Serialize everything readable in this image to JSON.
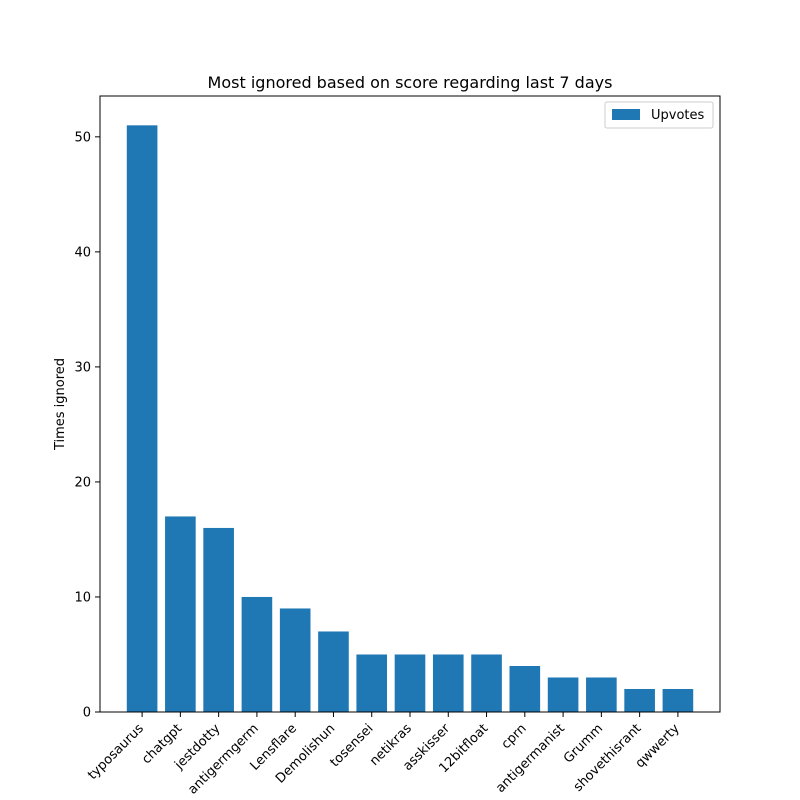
{
  "chart_data": {
    "type": "bar",
    "title": "Most ignored based on score regarding last 7 days",
    "xlabel": "",
    "ylabel": "Times ignored",
    "categories": [
      "typosaurus",
      "chatgpt",
      "jestdotty",
      "antigermgerm",
      "Lensflare",
      "Demolishun",
      "tosensei",
      "netikras",
      "asskisser",
      "12bitfloat",
      "cprn",
      "antigermanist",
      "Grumm",
      "shovethisrant",
      "qwwerty"
    ],
    "series": [
      {
        "name": "Upvotes",
        "values": [
          51,
          17,
          16,
          10,
          9,
          7,
          5,
          5,
          5,
          5,
          4,
          3,
          3,
          2,
          2
        ],
        "color": "#1f77b4"
      }
    ],
    "ylim": [
      0,
      53.55
    ],
    "yticks": [
      0,
      10,
      20,
      30,
      40,
      50
    ],
    "grid": false,
    "legend_position": "upper right"
  }
}
